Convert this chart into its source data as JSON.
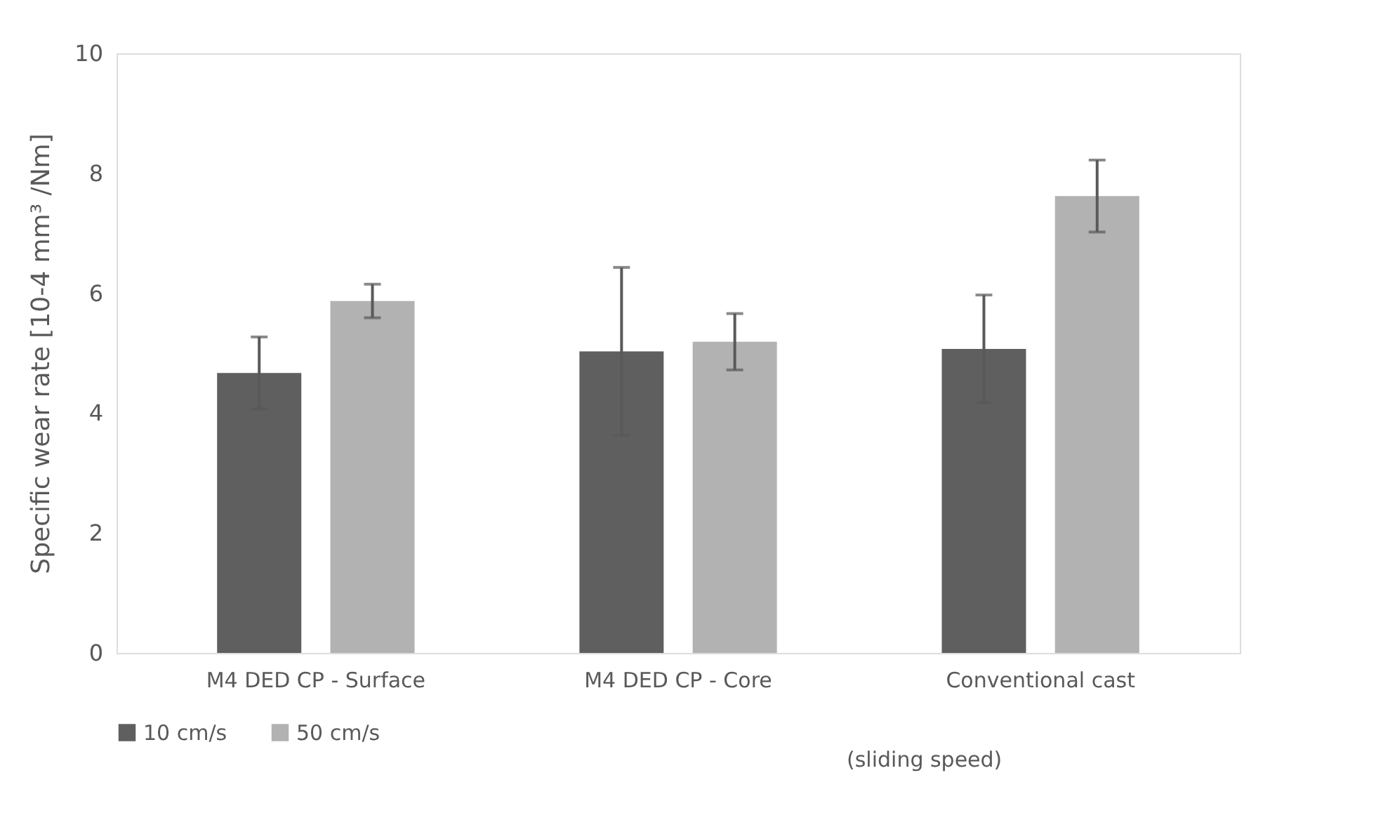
{
  "chart_data": {
    "type": "bar",
    "ylabel": "Specific wear rate [10-4 mm³ /Nm]",
    "categories": [
      "M4 DED CP - Surface",
      "M4 DED CP - Core",
      "Conventional cast"
    ],
    "series": [
      {
        "name": "10 cm/s",
        "color": "#5f5f5f",
        "values": [
          4.67,
          5.03,
          5.07
        ],
        "errors": [
          0.6,
          1.4,
          0.9
        ]
      },
      {
        "name": "50 cm/s",
        "color": "#b2b2b2",
        "values": [
          5.87,
          5.19,
          7.62
        ],
        "errors": [
          0.28,
          0.47,
          0.6
        ]
      }
    ],
    "ylim": [
      0,
      10
    ],
    "yticks": [
      0,
      2,
      4,
      6,
      8,
      10
    ],
    "grid": false,
    "legend": "bottom",
    "annotations": [
      "(sliding speed)"
    ]
  }
}
